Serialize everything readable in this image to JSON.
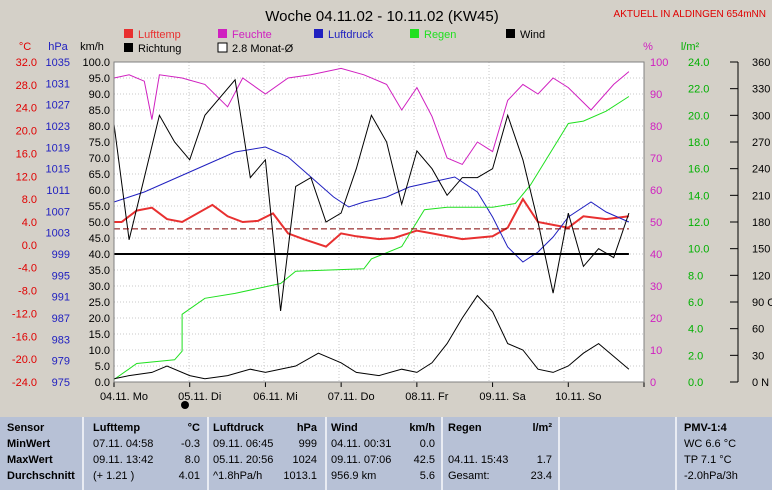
{
  "chart_data": {
    "type": "line",
    "title": "Woche 04.11.02 - 10.11.02 (KW45)",
    "subtitle": "AKTUELL IN ALDINGEN 654mNN",
    "x_ticks": [
      "04.11. Mo",
      "05.11. Di",
      "06.11. Mi",
      "07.11. Do",
      "08.11. Fr",
      "09.11. Sa",
      "10.11. So"
    ],
    "axes": {
      "temp": {
        "unit": "°C",
        "ticks": [
          "32.0",
          "28.0",
          "24.0",
          "20.0",
          "16.0",
          "12.0",
          "8.0",
          "4.0",
          "0.0",
          "-4.0",
          "-8.0",
          "-12.0",
          "-16.0",
          "-20.0",
          "-24.0"
        ],
        "range": [
          -24,
          32
        ]
      },
      "pressure": {
        "unit": "hPa",
        "ticks": [
          "1035",
          "1031",
          "1027",
          "1023",
          "1019",
          "1015",
          "1011",
          "1007",
          "1003",
          "999",
          "995",
          "991",
          "987",
          "983",
          "979",
          "975"
        ],
        "range": [
          975,
          1039
        ]
      },
      "wind": {
        "unit": "km/h",
        "ticks": [
          "100.0",
          "95.0",
          "90.0",
          "85.0",
          "80.0",
          "75.0",
          "70.0",
          "65.0",
          "60.0",
          "55.0",
          "50.0",
          "45.0",
          "40.0",
          "35.0",
          "30.0",
          "25.0",
          "20.0",
          "15.0",
          "10.0",
          "5.0",
          "0.0"
        ],
        "range": [
          0,
          100
        ]
      },
      "humidity": {
        "unit": "%",
        "ticks": [
          "100",
          "90",
          "80",
          "70",
          "60",
          "50",
          "40",
          "30",
          "20",
          "10",
          "0"
        ],
        "range": [
          0,
          100
        ]
      },
      "rain": {
        "unit": "l/m²",
        "ticks": [
          "24.0",
          "22.0",
          "20.0",
          "18.0",
          "16.0",
          "14.0",
          "12.0",
          "10.0",
          "8.0",
          "6.0",
          "4.0",
          "2.0",
          "0.0"
        ],
        "range": [
          0,
          26
        ]
      },
      "direction": {
        "ticks": [
          "360 N",
          "330",
          "300",
          "270 W",
          "240",
          "210",
          "180 S",
          "150",
          "120",
          "90 O",
          "60",
          "30",
          "0 N"
        ],
        "range": [
          0,
          360
        ]
      }
    },
    "legend": [
      {
        "name": "Lufttemp",
        "color": "#e83030"
      },
      {
        "name": "Feuchte",
        "color": "#d020c0"
      },
      {
        "name": "Luftdruck",
        "color": "#2020c0"
      },
      {
        "name": "Regen",
        "color": "#20e020"
      },
      {
        "name": "Wind",
        "color": "#000000"
      },
      {
        "name": "Richtung",
        "color": "#000000"
      },
      {
        "name": "2.8 Monat-Ø",
        "color": "#ffffff"
      }
    ],
    "series": [
      {
        "name": "Lufttemp",
        "axis": "temp",
        "color": "#e83030",
        "points": [
          [
            0,
            4.0
          ],
          [
            0.1,
            4.0
          ],
          [
            0.3,
            6.0
          ],
          [
            0.5,
            6.5
          ],
          [
            0.7,
            4.5
          ],
          [
            0.9,
            4.0
          ],
          [
            1.3,
            7.0
          ],
          [
            1.5,
            5.0
          ],
          [
            1.7,
            4.0
          ],
          [
            1.9,
            4.2
          ],
          [
            2.1,
            5.5
          ],
          [
            2.3,
            2.0
          ],
          [
            2.5,
            1.0
          ],
          [
            2.8,
            -0.3
          ],
          [
            3.0,
            2.0
          ],
          [
            3.2,
            1.5
          ],
          [
            3.5,
            1.0
          ],
          [
            3.7,
            1.2
          ],
          [
            4.0,
            2.5
          ],
          [
            4.2,
            2.0
          ],
          [
            4.6,
            1.0
          ],
          [
            5.0,
            1.5
          ],
          [
            5.2,
            3.0
          ],
          [
            5.4,
            8.0
          ],
          [
            5.6,
            4.0
          ],
          [
            5.8,
            3.5
          ],
          [
            6.0,
            3.0
          ],
          [
            6.2,
            5.0
          ],
          [
            6.5,
            4.5
          ],
          [
            6.8,
            5.0
          ]
        ]
      },
      {
        "name": "Feuchte",
        "axis": "humidity",
        "color": "#d020c0",
        "points": [
          [
            0,
            95
          ],
          [
            0.2,
            96
          ],
          [
            0.4,
            94
          ],
          [
            0.5,
            82
          ],
          [
            0.6,
            96
          ],
          [
            0.9,
            95
          ],
          [
            1.2,
            93
          ],
          [
            1.5,
            86
          ],
          [
            1.7,
            95
          ],
          [
            2.0,
            90
          ],
          [
            2.3,
            95
          ],
          [
            2.6,
            96
          ],
          [
            3.0,
            98
          ],
          [
            3.3,
            96
          ],
          [
            3.6,
            93
          ],
          [
            3.8,
            85
          ],
          [
            4.0,
            92
          ],
          [
            4.2,
            83
          ],
          [
            4.4,
            70
          ],
          [
            4.6,
            68
          ],
          [
            4.8,
            75
          ],
          [
            5.0,
            72
          ],
          [
            5.2,
            88
          ],
          [
            5.4,
            93
          ],
          [
            5.6,
            90
          ],
          [
            5.8,
            95
          ],
          [
            6.0,
            92
          ],
          [
            6.3,
            85
          ],
          [
            6.6,
            93
          ],
          [
            6.8,
            97
          ]
        ]
      },
      {
        "name": "Luftdruck",
        "axis": "pressure",
        "color": "#2020c0",
        "points": [
          [
            0,
            1011
          ],
          [
            0.2,
            1012
          ],
          [
            0.4,
            1013
          ],
          [
            0.7,
            1015
          ],
          [
            1.0,
            1017
          ],
          [
            1.3,
            1019
          ],
          [
            1.6,
            1021
          ],
          [
            2.0,
            1022
          ],
          [
            2.3,
            1020
          ],
          [
            2.6,
            1016
          ],
          [
            2.9,
            1012
          ],
          [
            3.1,
            1010
          ],
          [
            3.3,
            1011
          ],
          [
            3.6,
            1012
          ],
          [
            3.9,
            1014
          ],
          [
            4.2,
            1015
          ],
          [
            4.5,
            1016
          ],
          [
            4.8,
            1013
          ],
          [
            5.0,
            1008
          ],
          [
            5.2,
            1002
          ],
          [
            5.4,
            999
          ],
          [
            5.6,
            1001
          ],
          [
            5.8,
            1004
          ],
          [
            6.0,
            1008
          ],
          [
            6.3,
            1011
          ],
          [
            6.5,
            1009
          ],
          [
            6.8,
            1007
          ]
        ]
      },
      {
        "name": "Regen",
        "axis": "rain",
        "color": "#20e020",
        "points": [
          [
            0,
            0.2
          ],
          [
            0.3,
            1.5
          ],
          [
            0.8,
            1.8
          ],
          [
            0.9,
            2.5
          ],
          [
            0.9,
            5.5
          ],
          [
            1.2,
            6.8
          ],
          [
            1.6,
            7.2
          ],
          [
            2.2,
            8.0
          ],
          [
            2.4,
            9.0
          ],
          [
            3.3,
            9.2
          ],
          [
            3.4,
            10.0
          ],
          [
            3.8,
            11.0
          ],
          [
            4.1,
            14.0
          ],
          [
            4.4,
            14.2
          ],
          [
            5.0,
            14.2
          ],
          [
            5.3,
            14.5
          ],
          [
            5.5,
            16.0
          ],
          [
            5.8,
            19.0
          ],
          [
            6.0,
            21.0
          ],
          [
            6.2,
            21.2
          ],
          [
            6.5,
            22.0
          ],
          [
            6.8,
            23.2
          ]
        ]
      },
      {
        "name": "Wind",
        "axis": "wind",
        "color": "#000000",
        "points": [
          [
            0,
            1
          ],
          [
            0.2,
            2
          ],
          [
            0.5,
            3
          ],
          [
            0.7,
            5
          ],
          [
            1.0,
            2
          ],
          [
            1.2,
            1
          ],
          [
            1.5,
            2
          ],
          [
            1.8,
            4
          ],
          [
            2.0,
            3
          ],
          [
            2.4,
            5
          ],
          [
            2.7,
            9
          ],
          [
            3.0,
            6
          ],
          [
            3.2,
            3
          ],
          [
            3.5,
            2
          ],
          [
            3.8,
            4
          ],
          [
            4.0,
            3
          ],
          [
            4.2,
            6
          ],
          [
            4.4,
            12
          ],
          [
            4.6,
            20
          ],
          [
            4.8,
            27
          ],
          [
            5.0,
            22
          ],
          [
            5.2,
            12
          ],
          [
            5.4,
            10
          ],
          [
            5.6,
            4
          ],
          [
            5.8,
            3
          ],
          [
            6.0,
            5
          ],
          [
            6.2,
            9
          ],
          [
            6.4,
            12
          ],
          [
            6.6,
            8
          ],
          [
            6.8,
            4
          ]
        ]
      },
      {
        "name": "Richtung",
        "axis": "direction",
        "color": "#000000",
        "points": [
          [
            0,
            290
          ],
          [
            0.2,
            160
          ],
          [
            0.4,
            230
          ],
          [
            0.6,
            300
          ],
          [
            0.8,
            270
          ],
          [
            1.0,
            250
          ],
          [
            1.2,
            300
          ],
          [
            1.4,
            320
          ],
          [
            1.6,
            340
          ],
          [
            1.8,
            230
          ],
          [
            2.0,
            250
          ],
          [
            2.2,
            80
          ],
          [
            2.3,
            150
          ],
          [
            2.4,
            220
          ],
          [
            2.6,
            230
          ],
          [
            2.8,
            180
          ],
          [
            3.0,
            190
          ],
          [
            3.2,
            240
          ],
          [
            3.4,
            300
          ],
          [
            3.6,
            270
          ],
          [
            3.8,
            200
          ],
          [
            4.0,
            260
          ],
          [
            4.2,
            240
          ],
          [
            4.4,
            210
          ],
          [
            4.6,
            230
          ],
          [
            4.8,
            230
          ],
          [
            5.0,
            240
          ],
          [
            5.2,
            300
          ],
          [
            5.4,
            250
          ],
          [
            5.6,
            180
          ],
          [
            5.8,
            100
          ],
          [
            6.0,
            190
          ],
          [
            6.2,
            130
          ],
          [
            6.4,
            150
          ],
          [
            6.6,
            140
          ],
          [
            6.8,
            190
          ]
        ]
      },
      {
        "name": "2.8 Monat-Ø",
        "axis": "temp",
        "color": "#800000",
        "dashed": true,
        "points": [
          [
            0,
            2.8
          ],
          [
            6.8,
            2.8
          ]
        ]
      },
      {
        "name": "Nulllinie",
        "axis": "wind",
        "color": "#000000",
        "points": [
          [
            0,
            40
          ],
          [
            6.8,
            40
          ]
        ]
      }
    ]
  },
  "table": {
    "columns": [
      {
        "header": "Sensor",
        "unit": ""
      },
      {
        "header": "Lufttemp",
        "unit": "°C"
      },
      {
        "header": "Luftdruck",
        "unit": "hPa"
      },
      {
        "header": "Wind",
        "unit": "km/h"
      },
      {
        "header": "Regen",
        "unit": "l/m²"
      },
      {
        "header": "PMV-1:4",
        "unit": ""
      }
    ],
    "rows": [
      {
        "label": "MinWert",
        "temp_time": "07.11.  04:58",
        "temp_val": "-0.3",
        "press_time": "09.11.  06:45",
        "press_val": "999",
        "wind_time": "04.11.  00:31",
        "wind_val": "0.0",
        "rain_time": "",
        "rain_val": "",
        "pmv": "WC 6.6 °C"
      },
      {
        "label": "MaxWert",
        "temp_time": "09.11.  13:42",
        "temp_val": "8.0",
        "press_time": "05.11.  20:56",
        "press_val": "1024",
        "wind_time": "09.11.  07:06",
        "wind_val": "42.5",
        "rain_time": "04.11.  15:43",
        "rain_val": "1.7",
        "pmv": "TP 7.1 °C"
      },
      {
        "label": "Durchschnitt",
        "temp_time": "(+ 1.21 )",
        "temp_val": "4.01",
        "press_time": "^1.8hPa/h",
        "press_val": "1013.1",
        "wind_time": "956.9 km",
        "wind_val": "5.6",
        "rain_time": "Gesamt:",
        "rain_val": "23.4",
        "pmv": "-2.0hPa/3h"
      }
    ]
  }
}
